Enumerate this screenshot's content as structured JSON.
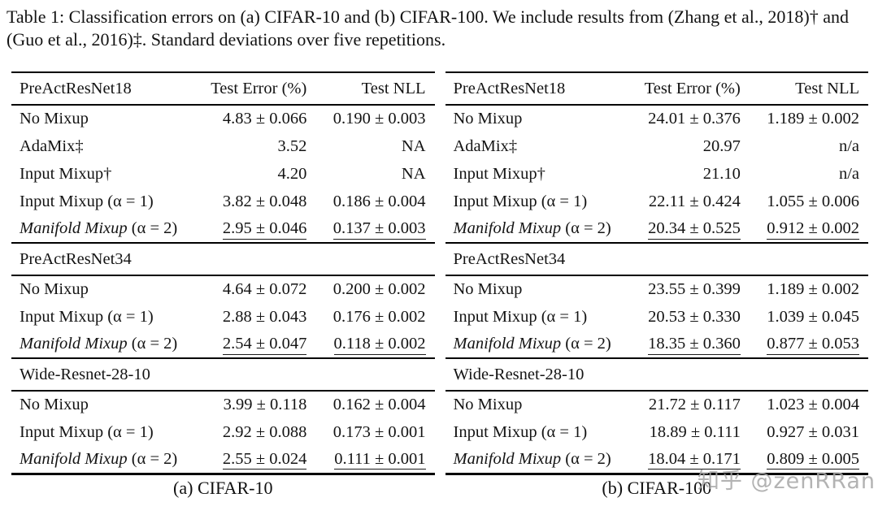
{
  "colors": {
    "text": "#141414",
    "rule": "#000000",
    "watermark": "#a6a6a6",
    "background": "#ffffff"
  },
  "caption": "Table 1: Classification errors on (a) CIFAR-10 and (b) CIFAR-100. We include results from (Zhang et al., 2018)† and (Guo et al., 2016)‡. Standard deviations over five repetitions.",
  "watermark": "知乎 @zenRRan",
  "a": {
    "header": {
      "model": "PreActResNet18",
      "err": "Test Error (%)",
      "nll": "Test NLL"
    },
    "g1": [
      {
        "label": "No Mixup",
        "err": "4.83 ± 0.066",
        "nll": "0.190 ± 0.003"
      },
      {
        "label": "AdaMix‡",
        "err": "3.52",
        "nll": "NA"
      },
      {
        "label": "Input Mixup†",
        "err": "4.20",
        "nll": "NA"
      },
      {
        "label": "Input Mixup (α = 1)",
        "err": "3.82 ± 0.048",
        "nll": "0.186 ± 0.004"
      },
      {
        "label_em": "Manifold Mixup",
        "label_tail": " (α = 2)",
        "err": "2.95 ± 0.046",
        "nll": "0.137 ± 0.003"
      }
    ],
    "sub2": "PreActResNet34",
    "g2": [
      {
        "label": "No Mixup",
        "err": "4.64 ± 0.072",
        "nll": "0.200 ± 0.002"
      },
      {
        "label": "Input Mixup (α = 1)",
        "err": "2.88 ± 0.043",
        "nll": "0.176 ± 0.002"
      },
      {
        "label_em": "Manifold Mixup",
        "label_tail": " (α = 2)",
        "err": "2.54 ± 0.047",
        "nll": "0.118 ± 0.002"
      }
    ],
    "sub3": "Wide-Resnet-28-10",
    "g3": [
      {
        "label": "No Mixup",
        "err": "3.99 ± 0.118",
        "nll": "0.162 ± 0.004"
      },
      {
        "label": "Input Mixup (α = 1)",
        "err": "2.92 ± 0.088",
        "nll": "0.173 ± 0.001"
      },
      {
        "label_em": "Manifold Mixup",
        "label_tail": " (α = 2)",
        "err": "2.55 ± 0.024",
        "nll": "0.111 ± 0.001"
      }
    ],
    "subcaption": "(a) CIFAR-10"
  },
  "b": {
    "header": {
      "model": "PreActResNet18",
      "err": "Test Error (%)",
      "nll": "Test NLL"
    },
    "g1": [
      {
        "label": "No Mixup",
        "err": "24.01 ± 0.376",
        "nll": "1.189 ± 0.002"
      },
      {
        "label": "AdaMix‡",
        "err": "20.97",
        "nll": "n/a"
      },
      {
        "label": "Input Mixup†",
        "err": "21.10",
        "nll": "n/a"
      },
      {
        "label": "Input Mixup (α = 1)",
        "err": "22.11 ± 0.424",
        "nll": "1.055 ± 0.006"
      },
      {
        "label_em": "Manifold Mixup",
        "label_tail": " (α = 2)",
        "err": "20.34 ± 0.525",
        "nll": "0.912 ± 0.002"
      }
    ],
    "sub2": "PreActResNet34",
    "g2": [
      {
        "label": "No Mixup",
        "err": "23.55 ± 0.399",
        "nll": "1.189 ± 0.002"
      },
      {
        "label": "Input Mixup (α = 1)",
        "err": "20.53 ± 0.330",
        "nll": "1.039 ± 0.045"
      },
      {
        "label_em": "Manifold Mixup",
        "label_tail": " (α = 2)",
        "err": "18.35 ± 0.360",
        "nll": "0.877 ± 0.053"
      }
    ],
    "sub3": "Wide-Resnet-28-10",
    "g3": [
      {
        "label": "No Mixup",
        "err": "21.72 ± 0.117",
        "nll": "1.023 ± 0.004"
      },
      {
        "label": "Input Mixup (α = 1)",
        "err": "18.89 ± 0.111",
        "nll": "0.927 ± 0.031"
      },
      {
        "label_em": "Manifold Mixup",
        "label_tail": " (α = 2)",
        "err": "18.04 ± 0.171",
        "nll": "0.809 ± 0.005"
      }
    ],
    "subcaption": "(b) CIFAR-100"
  }
}
